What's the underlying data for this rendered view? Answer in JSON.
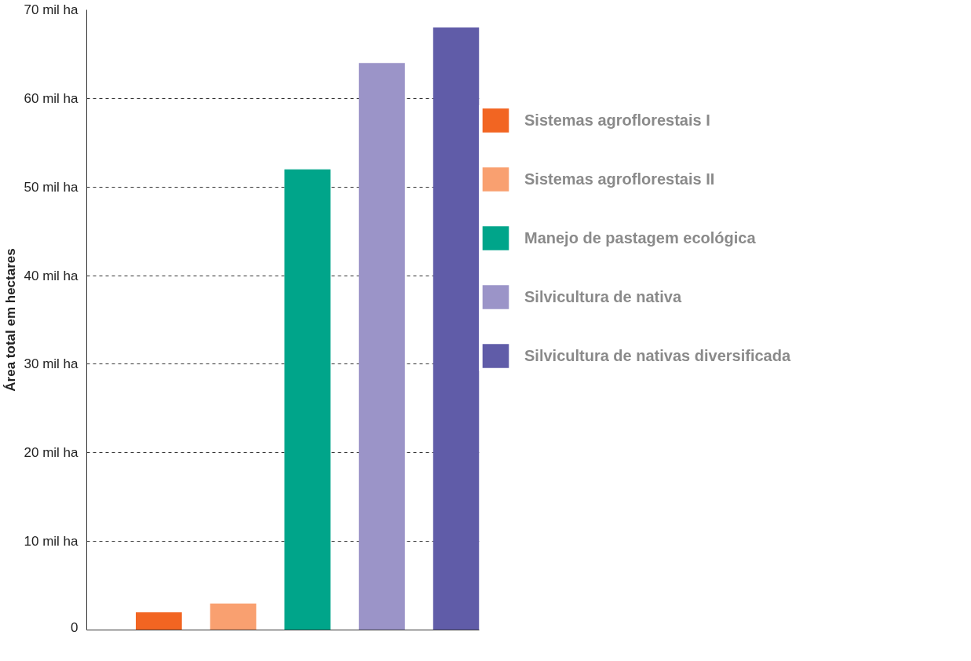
{
  "chart_data": {
    "type": "bar",
    "ylabel": "Área total em hectares",
    "categories": [
      null,
      null,
      null,
      null,
      null
    ],
    "series": [
      {
        "name": "Sistemas agroflorestais I",
        "color": "#f26522",
        "values": [
          2,
          null,
          null,
          null,
          null
        ]
      },
      {
        "name": "Sistemas agroflorestais II",
        "color": "#f9a070",
        "values": [
          null,
          3,
          null,
          null,
          null
        ]
      },
      {
        "name": "Manejo de pastagem ecológica",
        "color": "#00a58a",
        "values": [
          null,
          null,
          52,
          null,
          null
        ]
      },
      {
        "name": "Silvicultura de nativa",
        "color": "#9b94c8",
        "values": [
          null,
          null,
          null,
          64,
          null
        ]
      },
      {
        "name": "Silvicultura de nativas diversificada",
        "color": "#605ca8",
        "values": [
          null,
          null,
          null,
          null,
          68
        ]
      }
    ],
    "ylim": [
      0,
      70
    ],
    "yticks": [
      0,
      {
        "value": 10,
        "label": "10 mil ha"
      },
      {
        "value": 20,
        "label": "20 mil ha"
      },
      {
        "value": 30,
        "label": "30 mil ha"
      },
      {
        "value": 40,
        "label": "40 mil ha"
      },
      {
        "value": 50,
        "label": "50 mil ha"
      },
      {
        "value": 60,
        "label": "60 mil ha"
      },
      {
        "value": 70,
        "label": "70 mil ha"
      }
    ],
    "grid": "y",
    "line_style": "dashed",
    "legend": "right"
  }
}
